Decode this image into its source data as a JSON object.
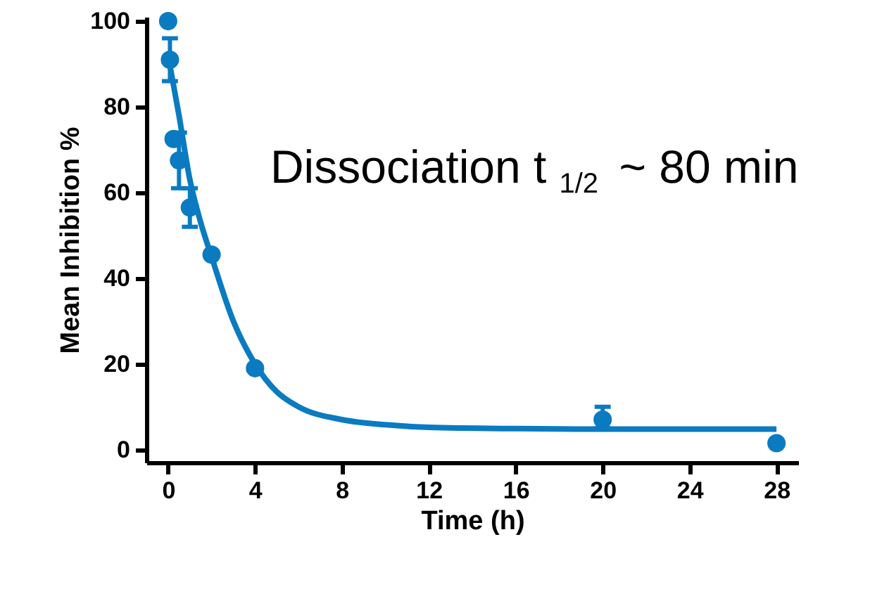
{
  "chart_data": {
    "type": "scatter",
    "xlabel": "Time (h)",
    "ylabel": "Mean Inhibition %",
    "xlim": [
      -1,
      29
    ],
    "ylim": [
      -3,
      101
    ],
    "xticks": [
      0,
      4,
      8,
      12,
      16,
      20,
      24,
      28
    ],
    "yticks": [
      0,
      20,
      40,
      60,
      80,
      100
    ],
    "grid": false,
    "annotations": [
      "Dissociation  t$_{1/2}$ ~ 80 min"
    ],
    "series": [
      {
        "type": "line",
        "color": "#0a7bc1",
        "line_style": "solid",
        "marker": "none",
        "x": [
          0,
          0.5,
          1,
          1.5,
          2,
          3,
          4,
          5,
          6,
          8,
          10,
          12,
          16,
          20,
          28
        ],
        "values": [
          92,
          78,
          63,
          53,
          45,
          30,
          20,
          13.5,
          10,
          7,
          5.8,
          5.2,
          4.9,
          4.8,
          4.8
        ]
      },
      {
        "color": "#0a7bc1",
        "marker": "circle",
        "x": [
          0,
          0.083,
          0.25,
          0.5,
          1,
          2,
          4,
          20,
          28
        ],
        "values": [
          100,
          91,
          72.5,
          67.5,
          56.5,
          45.5,
          19,
          7,
          1.5
        ],
        "errors": [
          null,
          [
            86,
            96
          ],
          null,
          [
            61,
            74
          ],
          [
            52,
            61
          ],
          null,
          null,
          [
            5,
            10
          ],
          null
        ]
      }
    ]
  }
}
